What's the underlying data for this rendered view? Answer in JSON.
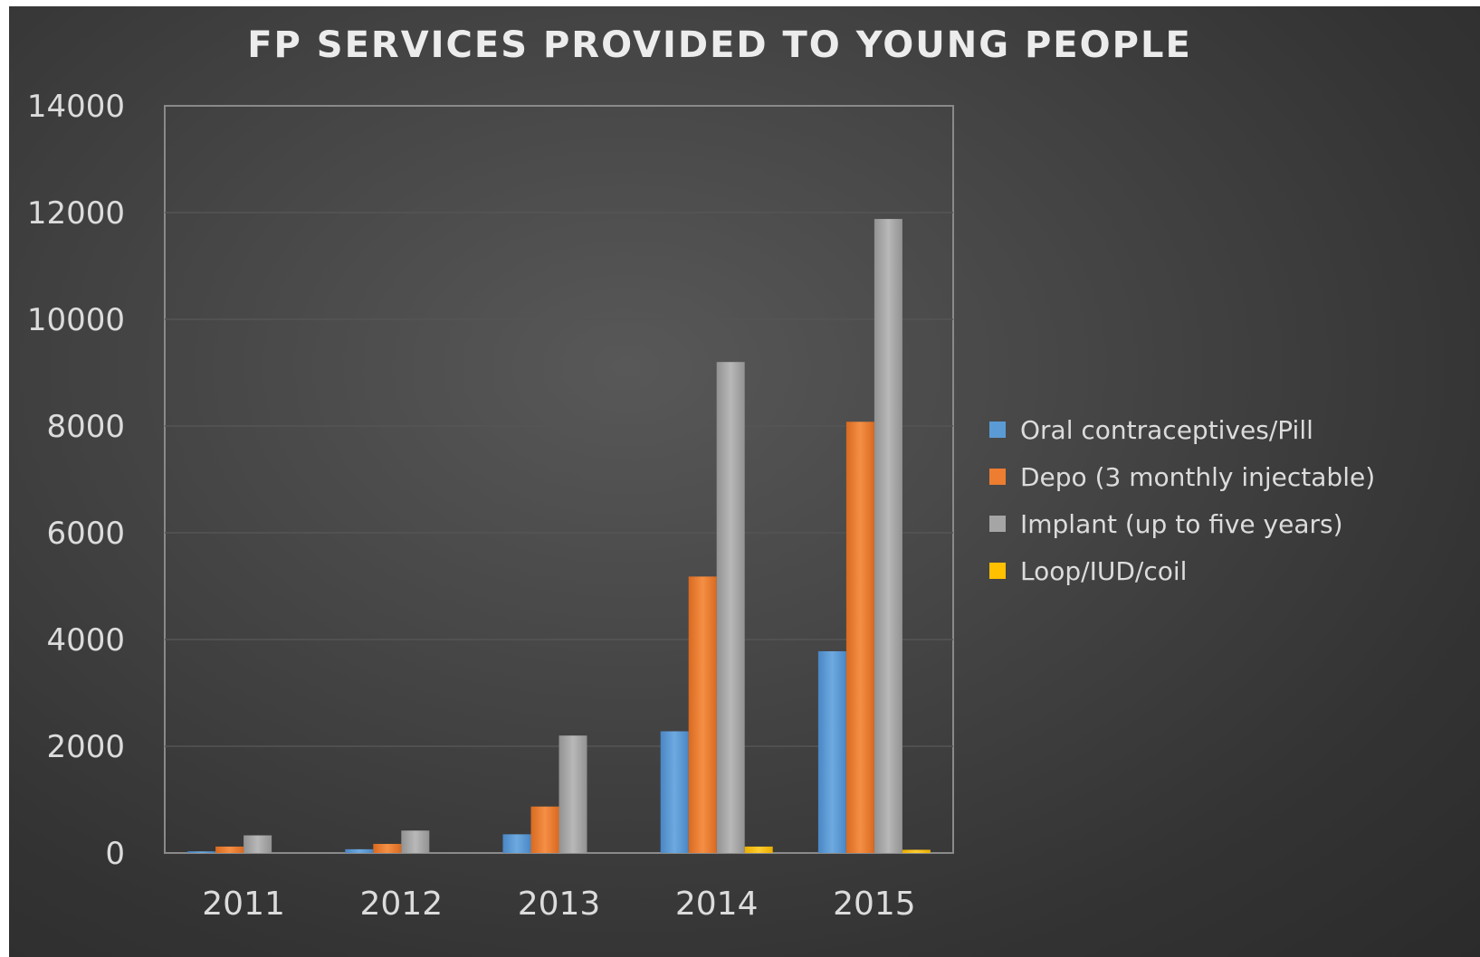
{
  "chart_data": {
    "type": "bar",
    "title": "FP SERVICES PROVIDED TO YOUNG PEOPLE",
    "xlabel": "",
    "ylabel": "",
    "categories": [
      "2011",
      "2012",
      "2013",
      "2014",
      "2015"
    ],
    "ylim": [
      0,
      14000
    ],
    "yticks": [
      "0",
      "2000",
      "4000",
      "6000",
      "8000",
      "10000",
      "12000",
      "14000"
    ],
    "grid": true,
    "legend_position": "right",
    "series": [
      {
        "name": "Oral contraceptives/Pill",
        "color": "#5b9bd5",
        "values": [
          30,
          70,
          350,
          2280,
          3780
        ]
      },
      {
        "name": "Depo (3 monthly injectable)",
        "color": "#ed7d31",
        "values": [
          120,
          170,
          870,
          5180,
          8080
        ]
      },
      {
        "name": "Implant (up to five years)",
        "color": "#a5a5a5",
        "values": [
          330,
          420,
          2200,
          9200,
          11880
        ]
      },
      {
        "name": "Loop/IUD/coil",
        "color": "#ffc000",
        "values": [
          0,
          0,
          0,
          120,
          60
        ]
      }
    ]
  }
}
